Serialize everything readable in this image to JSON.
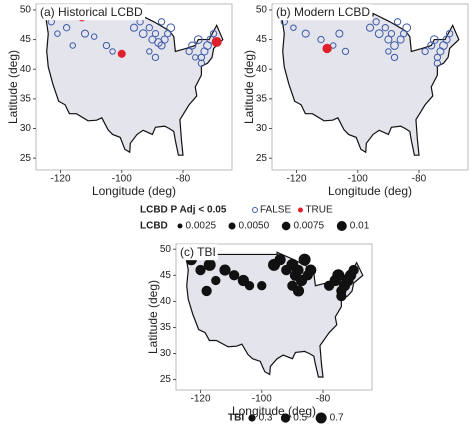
{
  "chart_data": [
    {
      "type": "scatter",
      "title": "(a) Historical LCBD",
      "xlabel": "Longitude (deg)",
      "ylabel": "Latitude (deg)",
      "xlim": [
        -128,
        -64
      ],
      "ylim": [
        23,
        51
      ],
      "xticks": [
        -120,
        -100,
        -80
      ],
      "yticks": [
        25,
        30,
        35,
        40,
        45,
        50
      ],
      "series": [
        {
          "name": "FALSE",
          "color": "#3d5aa8",
          "x": [
            -123,
            -121,
            -118,
            -116,
            -112,
            -109,
            -105,
            -103,
            -96,
            -94,
            -93,
            -91,
            -90,
            -89,
            -88,
            -87,
            -86,
            -85,
            -84,
            -91,
            -89,
            -87,
            -78,
            -77,
            -75,
            -74,
            -73,
            -72,
            -71,
            -70,
            -74,
            -76
          ],
          "y": [
            48,
            46,
            47,
            44,
            46,
            45.5,
            44,
            43,
            47,
            48,
            46,
            47,
            45,
            46,
            44.5,
            48,
            45,
            46,
            47,
            43,
            42,
            44,
            43,
            44,
            45,
            42,
            43,
            44,
            45,
            46,
            41,
            42
          ],
          "sizes": [
            0.004,
            0.003,
            0.004,
            0.003,
            0.005,
            0.003,
            0.004,
            0.003,
            0.005,
            0.004,
            0.006,
            0.004,
            0.005,
            0.004,
            0.006,
            0.004,
            0.005,
            0.004,
            0.006,
            0.003,
            0.004,
            0.005,
            0.004,
            0.005,
            0.006,
            0.004,
            0.005,
            0.006,
            0.005,
            0.004,
            0.004,
            0.003
          ]
        },
        {
          "name": "TRUE",
          "color": "#e0202a",
          "x": [
            -113,
            -100,
            -69
          ],
          "y": [
            48.8,
            42.6,
            44.6
          ],
          "sizes": [
            0.006,
            0.005,
            0.008
          ]
        }
      ]
    },
    {
      "type": "scatter",
      "title": "(b) Modern LCBD",
      "xlabel": "Longitude (deg)",
      "ylabel": "Latitude (deg)",
      "xlim": [
        -128,
        -64
      ],
      "ylim": [
        23,
        51
      ],
      "xticks": [
        -120,
        -100,
        -80
      ],
      "yticks": [
        25,
        30,
        35,
        40,
        45,
        50
      ],
      "series": [
        {
          "name": "FALSE",
          "color": "#3d5aa8",
          "x": [
            -124,
            -121,
            -117,
            -112,
            -108,
            -106,
            -104,
            -96,
            -94,
            -93,
            -91,
            -90,
            -89,
            -88,
            -87,
            -86,
            -85,
            -84,
            -90,
            -88,
            -78,
            -76,
            -75,
            -74,
            -73,
            -72,
            -71,
            -70,
            -74
          ],
          "y": [
            48,
            47,
            46,
            45,
            44,
            46,
            43,
            47,
            48,
            46,
            47,
            45,
            46,
            44,
            48,
            45,
            46,
            47,
            43,
            42,
            43,
            44,
            45,
            42,
            43,
            44,
            45,
            46,
            41
          ],
          "sizes": [
            0.004,
            0.003,
            0.005,
            0.004,
            0.003,
            0.005,
            0.004,
            0.005,
            0.004,
            0.006,
            0.004,
            0.005,
            0.004,
            0.006,
            0.004,
            0.005,
            0.004,
            0.006,
            0.003,
            0.004,
            0.004,
            0.005,
            0.006,
            0.004,
            0.005,
            0.006,
            0.005,
            0.004,
            0.004
          ]
        },
        {
          "name": "TRUE",
          "color": "#e0202a",
          "x": [
            -110
          ],
          "y": [
            43.5
          ],
          "sizes": [
            0.007
          ]
        }
      ]
    },
    {
      "type": "scatter",
      "title": "(c) TBI",
      "xlabel": "Longitude (deg)",
      "ylabel": "Latitude (deg)",
      "xlim": [
        -128,
        -64
      ],
      "ylim": [
        23,
        51
      ],
      "xticks": [
        -120,
        -100,
        -80
      ],
      "yticks": [
        25,
        30,
        35,
        40,
        45,
        50
      ],
      "series": [
        {
          "name": "TBI",
          "color": "#111111",
          "x": [
            -123,
            -120,
            -117,
            -115,
            -112,
            -109,
            -106,
            -104,
            -96,
            -94,
            -92,
            -90,
            -89,
            -88,
            -87,
            -86,
            -85,
            -84,
            -90,
            -88,
            -78,
            -76,
            -75,
            -74,
            -73,
            -72,
            -71,
            -70,
            -74,
            -100,
            -118
          ],
          "y": [
            48,
            46,
            47,
            44,
            46,
            45,
            44,
            43,
            47,
            48,
            46,
            47,
            45,
            46,
            44,
            48,
            45,
            46,
            43,
            42,
            43,
            44,
            45,
            42,
            43,
            44,
            45,
            46,
            41,
            43,
            42
          ],
          "sizes": [
            0.6,
            0.5,
            0.7,
            0.4,
            0.6,
            0.5,
            0.6,
            0.4,
            0.7,
            0.6,
            0.5,
            0.7,
            0.6,
            0.5,
            0.6,
            0.7,
            0.5,
            0.6,
            0.5,
            0.6,
            0.5,
            0.6,
            0.7,
            0.5,
            0.6,
            0.7,
            0.6,
            0.5,
            0.5,
            0.4,
            0.5
          ]
        }
      ]
    }
  ],
  "legends": {
    "significance_title": "LCBD P Adj < 0.05",
    "size_title": "LCBD",
    "sizes": [
      0.0025,
      {
        "value": 0.005,
        "label": "0.0050"
      },
      0.0075,
      0.01
    ],
    "tbi_title": "TBI",
    "tbi_sizes": [
      0.3,
      0.5,
      0.7
    ]
  }
}
